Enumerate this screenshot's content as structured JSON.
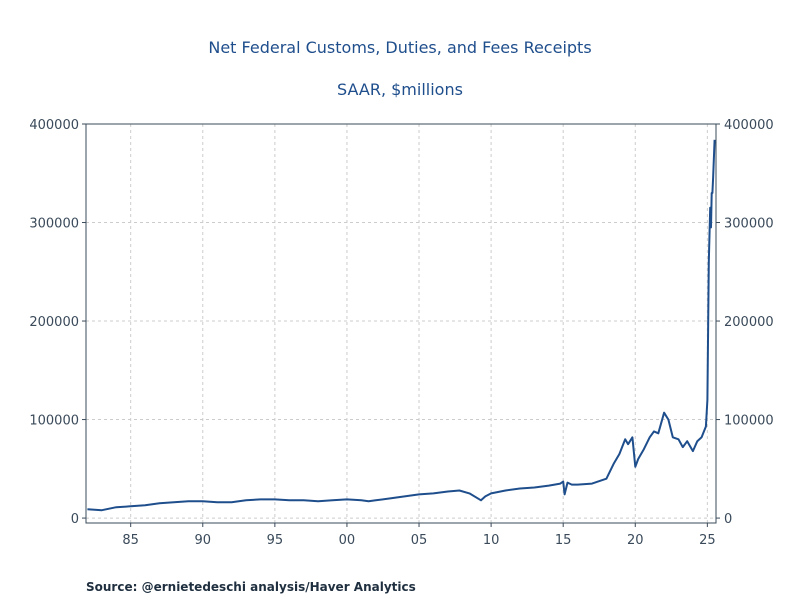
{
  "chart_data": {
    "type": "line",
    "title": "Net Federal Customs, Duties, and Fees Receipts",
    "subtitle": "SAAR, $millions",
    "xlabel": "",
    "ylabel": "",
    "x_tick_labels": [
      "85",
      "90",
      "95",
      "00",
      "05",
      "10",
      "15",
      "20",
      "25"
    ],
    "x_tick_values": [
      1985,
      1990,
      1995,
      2000,
      2005,
      2010,
      2015,
      2020,
      2025
    ],
    "y_tick_labels": [
      "0",
      "100000",
      "200000",
      "300000",
      "400000"
    ],
    "y_tick_values": [
      0,
      100000,
      200000,
      300000,
      400000
    ],
    "xlim": [
      1981.9,
      2025.6
    ],
    "ylim": [
      -5000,
      400000
    ],
    "grid": true,
    "line_color": "#1f4e8c",
    "x": [
      1982.0,
      1983.0,
      1984.0,
      1985.0,
      1986.0,
      1987.0,
      1988.0,
      1989.0,
      1990.0,
      1991.0,
      1992.0,
      1993.0,
      1994.0,
      1995.0,
      1996.0,
      1997.0,
      1998.0,
      1999.0,
      2000.0,
      2001.0,
      2001.5,
      2002.0,
      2003.0,
      2004.0,
      2005.0,
      2006.0,
      2007.0,
      2007.8,
      2008.5,
      2009.3,
      2009.6,
      2010.0,
      2011.0,
      2012.0,
      2013.0,
      2014.0,
      2014.8,
      2015.0,
      2015.1,
      2015.3,
      2015.6,
      2016.0,
      2017.0,
      2018.0,
      2018.5,
      2018.9,
      2019.3,
      2019.5,
      2019.8,
      2020.0,
      2020.2,
      2020.6,
      2021.0,
      2021.3,
      2021.6,
      2022.0,
      2022.3,
      2022.6,
      2023.0,
      2023.3,
      2023.6,
      2024.0,
      2024.3,
      2024.6,
      2024.9,
      2025.0,
      2025.1,
      2025.2,
      2025.25,
      2025.3,
      2025.35,
      2025.4,
      2025.5
    ],
    "values": [
      9000,
      8000,
      11000,
      12000,
      13000,
      15000,
      16000,
      17000,
      17000,
      16000,
      16000,
      18000,
      19000,
      19000,
      18000,
      18000,
      17000,
      18000,
      19000,
      18000,
      17000,
      18000,
      20000,
      22000,
      24000,
      25000,
      27000,
      28000,
      25000,
      18000,
      22000,
      25000,
      28000,
      30000,
      31000,
      33000,
      35000,
      37000,
      24000,
      36000,
      34000,
      34000,
      35000,
      40000,
      55000,
      65000,
      80000,
      75000,
      82000,
      52000,
      60000,
      70000,
      82000,
      88000,
      86000,
      107000,
      100000,
      82000,
      80000,
      72000,
      78000,
      68000,
      78000,
      82000,
      93000,
      120000,
      260000,
      315000,
      295000,
      330000,
      330000,
      345000,
      384000
    ]
  },
  "source": {
    "label": "Source:",
    "text": "@ernietedeschi analysis/Haver Analytics"
  }
}
